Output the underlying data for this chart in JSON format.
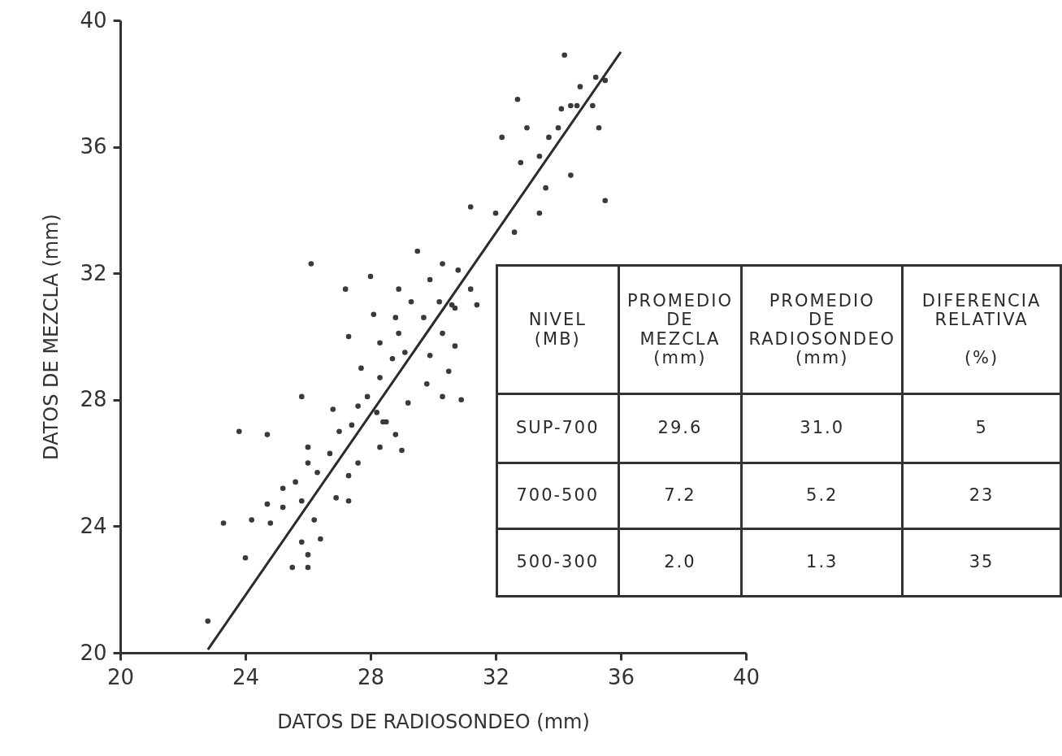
{
  "chart_data": {
    "type": "scatter",
    "xlabel": "DATOS DE RADIOSONDEO (mm)",
    "ylabel": "DATOS DE MEZCLA (mm)",
    "xlim": [
      20,
      40
    ],
    "ylim": [
      20,
      40
    ],
    "xticks": [
      20,
      24,
      28,
      32,
      36,
      40
    ],
    "yticks": [
      20,
      24,
      28,
      32,
      36,
      40
    ],
    "series": [
      {
        "marker": "circle",
        "color": "#3a3a3a",
        "x": [
          22.8,
          23.3,
          23.8,
          24.0,
          24.2,
          24.7,
          24.7,
          24.8,
          25.2,
          25.2,
          25.5,
          25.6,
          25.8,
          25.8,
          25.8,
          26.0,
          26.0,
          26.0,
          26.0,
          26.1,
          26.2,
          26.3,
          26.4,
          26.7,
          26.8,
          26.9,
          27.0,
          27.2,
          27.3,
          27.3,
          27.3,
          27.4,
          27.6,
          27.6,
          27.7,
          27.9,
          28.0,
          28.1,
          28.2,
          28.3,
          28.3,
          28.3,
          28.4,
          28.5,
          28.7,
          28.8,
          28.8,
          28.9,
          28.9,
          29.0,
          29.1,
          29.2,
          29.3,
          29.5,
          29.7,
          29.8,
          29.9,
          29.9,
          30.2,
          30.3,
          30.3,
          30.3,
          30.5,
          30.6,
          30.7,
          30.7,
          30.8,
          30.9,
          31.2,
          31.2,
          31.4,
          32.0,
          32.2,
          32.6,
          32.7,
          32.8,
          33.0,
          33.4,
          33.4,
          33.6,
          33.7,
          34.0,
          34.1,
          34.2,
          34.4,
          34.4,
          34.6,
          34.7,
          35.1,
          35.2,
          35.3,
          35.5,
          35.5
        ],
        "values": [
          21.0,
          24.1,
          27.0,
          23.0,
          24.2,
          26.9,
          24.7,
          24.1,
          25.2,
          24.6,
          22.7,
          25.4,
          28.1,
          24.8,
          23.5,
          26.5,
          26.0,
          23.1,
          22.7,
          32.3,
          24.2,
          25.7,
          23.6,
          26.3,
          27.7,
          24.9,
          27.0,
          31.5,
          30.0,
          25.6,
          24.8,
          27.2,
          27.8,
          26.0,
          29.0,
          28.1,
          31.9,
          30.7,
          27.6,
          29.8,
          28.7,
          26.5,
          27.3,
          27.3,
          29.3,
          30.6,
          26.9,
          31.5,
          30.1,
          26.4,
          29.5,
          27.9,
          31.1,
          32.7,
          30.6,
          28.5,
          31.8,
          29.4,
          31.1,
          30.1,
          28.1,
          32.3,
          28.9,
          31.0,
          30.9,
          29.7,
          32.1,
          28.0,
          31.5,
          34.1,
          31.0,
          33.9,
          36.3,
          33.3,
          37.5,
          35.5,
          36.6,
          33.9,
          35.7,
          34.7,
          36.3,
          36.6,
          37.2,
          38.9,
          37.3,
          35.1,
          37.3,
          37.9,
          37.3,
          38.2,
          36.6,
          38.1,
          34.3
        ]
      },
      {
        "type": "line",
        "color": "#2a2a2a",
        "x": [
          22.8,
          36.0
        ],
        "values": [
          20.1,
          39.0
        ]
      }
    ],
    "annotations": [
      "NIVEL\n(MB)",
      "PROMEDIO\nDE\nMEZCLA\n(mm)",
      "PROMEDIO\nDE\nRADIOSONDEO\n(mm)",
      "DIFERENCIA\nRELATIVA\n\n(%)",
      "SUP-700",
      "29.6",
      "31.0",
      "5",
      "700-500",
      "7.2",
      "5.2",
      "23",
      "500-300",
      "2.0",
      "1.3",
      "35"
    ]
  }
}
